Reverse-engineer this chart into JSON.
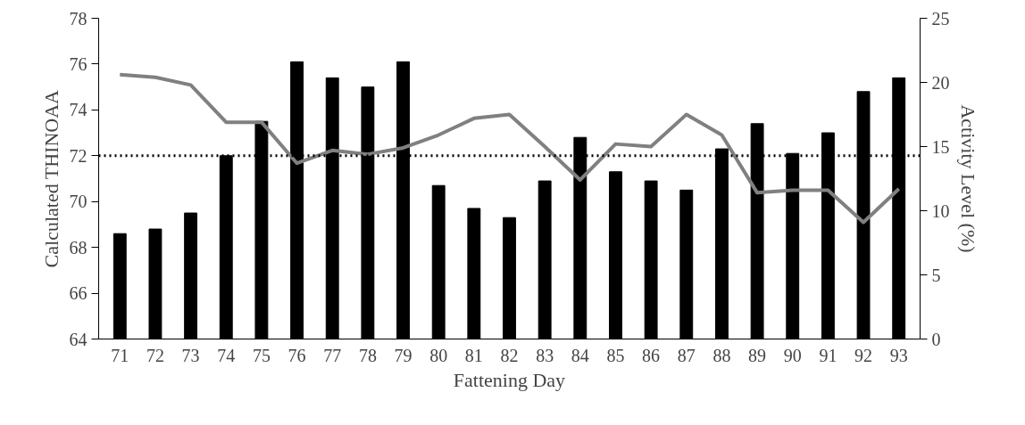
{
  "chart_data": {
    "type": "bar",
    "xlabel": "Fattening Day",
    "ylabel": "Calculated THINOAA",
    "y2label": "Activity Level (%)",
    "categories": [
      "71",
      "72",
      "73",
      "74",
      "75",
      "76",
      "77",
      "78",
      "79",
      "80",
      "81",
      "82",
      "83",
      "84",
      "85",
      "86",
      "87",
      "88",
      "89",
      "90",
      "91",
      "92",
      "93"
    ],
    "series": [
      {
        "color": "#000000",
        "values": [
          68.6,
          68.8,
          69.5,
          72.0,
          73.5,
          76.1,
          75.4,
          75.0,
          76.1,
          70.7,
          69.7,
          69.3,
          70.9,
          72.8,
          71.3,
          70.9,
          70.5,
          72.3,
          73.4,
          72.1,
          73.0,
          74.8,
          75.4
        ]
      },
      {
        "type": "line",
        "axis": "y2",
        "color": "#808080",
        "values": [
          20.6,
          20.4,
          19.8,
          16.9,
          16.9,
          13.7,
          14.7,
          14.4,
          14.9,
          15.9,
          17.2,
          17.5,
          15.0,
          12.4,
          15.2,
          15.0,
          17.5,
          15.9,
          11.4,
          11.6,
          11.6,
          9.1,
          11.7
        ]
      }
    ],
    "ylim": [
      64,
      78
    ],
    "yticks": [
      64,
      66,
      68,
      70,
      72,
      74,
      76,
      78
    ],
    "y2lim": [
      0,
      25
    ],
    "y2ticks": [
      0,
      5,
      10,
      15,
      20,
      25
    ],
    "ref_lines": [
      {
        "axis": "y",
        "value": 72,
        "color": "#000000",
        "line_style": "dotted"
      }
    ],
    "grid": false
  }
}
